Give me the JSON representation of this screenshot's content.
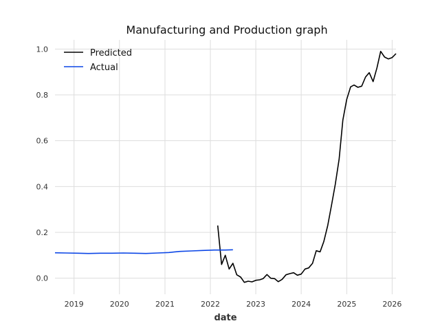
{
  "chart_data": {
    "type": "line",
    "title": "Manufacturing and Production graph",
    "xlabel": "date",
    "ylabel": "",
    "x_axis_type": "date",
    "xlim": [
      "2018-08-01",
      "2026-02-01"
    ],
    "ylim": [
      -0.07,
      1.04
    ],
    "x_ticks": [
      "2019",
      "2020",
      "2021",
      "2022",
      "2023",
      "2024",
      "2025",
      "2026"
    ],
    "y_ticks": [
      "0.0",
      "0.2",
      "0.4",
      "0.6",
      "0.8",
      "1.0"
    ],
    "grid": true,
    "legend_position": "top-left",
    "series": [
      {
        "name": "Predicted",
        "color": "#000000",
        "points": [
          [
            "2022-03-01",
            0.23
          ],
          [
            "2022-04-01",
            0.06
          ],
          [
            "2022-05-01",
            0.1
          ],
          [
            "2022-06-01",
            0.04
          ],
          [
            "2022-07-01",
            0.065
          ],
          [
            "2022-08-01",
            0.015
          ],
          [
            "2022-09-01",
            0.005
          ],
          [
            "2022-10-01",
            -0.018
          ],
          [
            "2022-11-01",
            -0.013
          ],
          [
            "2022-12-01",
            -0.016
          ],
          [
            "2023-01-01",
            -0.009
          ],
          [
            "2023-02-01",
            -0.007
          ],
          [
            "2023-03-01",
            -0.002
          ],
          [
            "2023-04-01",
            0.016
          ],
          [
            "2023-05-01",
            0.0
          ],
          [
            "2023-06-01",
            -0.002
          ],
          [
            "2023-07-01",
            -0.015
          ],
          [
            "2023-08-01",
            -0.005
          ],
          [
            "2023-09-01",
            0.015
          ],
          [
            "2023-10-01",
            0.02
          ],
          [
            "2023-11-01",
            0.024
          ],
          [
            "2023-12-01",
            0.013
          ],
          [
            "2024-01-01",
            0.018
          ],
          [
            "2024-02-01",
            0.04
          ],
          [
            "2024-03-01",
            0.045
          ],
          [
            "2024-04-01",
            0.065
          ],
          [
            "2024-05-01",
            0.12
          ],
          [
            "2024-06-01",
            0.115
          ],
          [
            "2024-07-01",
            0.16
          ],
          [
            "2024-08-01",
            0.23
          ],
          [
            "2024-09-01",
            0.32
          ],
          [
            "2024-10-01",
            0.41
          ],
          [
            "2024-11-01",
            0.52
          ],
          [
            "2024-12-01",
            0.69
          ],
          [
            "2025-01-01",
            0.78
          ],
          [
            "2025-02-01",
            0.835
          ],
          [
            "2025-03-01",
            0.843
          ],
          [
            "2025-04-01",
            0.833
          ],
          [
            "2025-05-01",
            0.838
          ],
          [
            "2025-06-01",
            0.878
          ],
          [
            "2025-07-01",
            0.897
          ],
          [
            "2025-08-01",
            0.858
          ],
          [
            "2025-09-01",
            0.918
          ],
          [
            "2025-10-01",
            0.99
          ],
          [
            "2025-11-01",
            0.965
          ],
          [
            "2025-12-01",
            0.957
          ],
          [
            "2026-01-01",
            0.963
          ],
          [
            "2026-02-01",
            0.98
          ]
        ]
      },
      {
        "name": "Actual",
        "color": "#0a45e6",
        "points": [
          [
            "2018-08-01",
            0.111
          ],
          [
            "2018-11-01",
            0.11
          ],
          [
            "2019-02-01",
            0.109
          ],
          [
            "2019-05-01",
            0.108
          ],
          [
            "2019-08-01",
            0.109
          ],
          [
            "2019-11-01",
            0.109
          ],
          [
            "2020-02-01",
            0.11
          ],
          [
            "2020-05-01",
            0.109
          ],
          [
            "2020-08-01",
            0.108
          ],
          [
            "2020-11-01",
            0.11
          ],
          [
            "2021-02-01",
            0.112
          ],
          [
            "2021-05-01",
            0.117
          ],
          [
            "2021-08-01",
            0.119
          ],
          [
            "2021-11-01",
            0.121
          ],
          [
            "2022-02-01",
            0.123
          ],
          [
            "2022-05-01",
            0.123
          ],
          [
            "2022-07-01",
            0.124
          ]
        ]
      }
    ]
  }
}
